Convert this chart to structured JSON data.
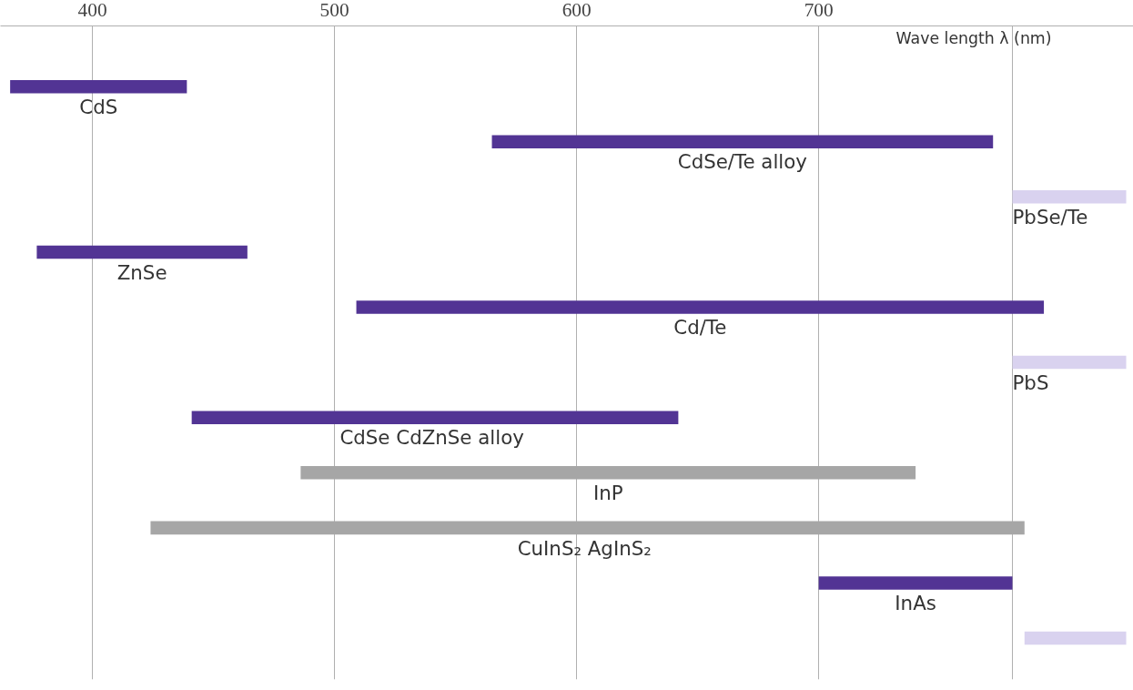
{
  "chart_data": {
    "type": "bar",
    "orientation": "horizontal",
    "xlabel": "Wave length λ (nm)",
    "categories": [
      "CdS",
      "CdSe/Te alloy",
      "PbSe/Te",
      "ZnSe",
      "Cd/Te",
      "PbS",
      "CdSe  CdZnSe alloy",
      "InP",
      "CuInS₂  AgInS₂",
      "InAs",
      null
    ],
    "base": [
      366,
      565,
      780,
      377,
      509,
      780,
      441,
      486,
      424,
      700,
      785
    ],
    "values": [
      73,
      207,
      47,
      87,
      284,
      47,
      201,
      254,
      361,
      80,
      42
    ],
    "colors": [
      "#523494",
      "#523494",
      "#d9d2ef",
      "#523494",
      "#523494",
      "#d9d2ef",
      "#523494",
      "#a6a6a6",
      "#a6a6a6",
      "#523494",
      "#d9d2ef"
    ],
    "xlim": [
      362,
      830
    ],
    "xticks": [
      400,
      500,
      600,
      700,
      {
        "value": 780,
        "label": null
      }
    ],
    "grid": "x",
    "legend": false,
    "tick_labels": "x"
  }
}
